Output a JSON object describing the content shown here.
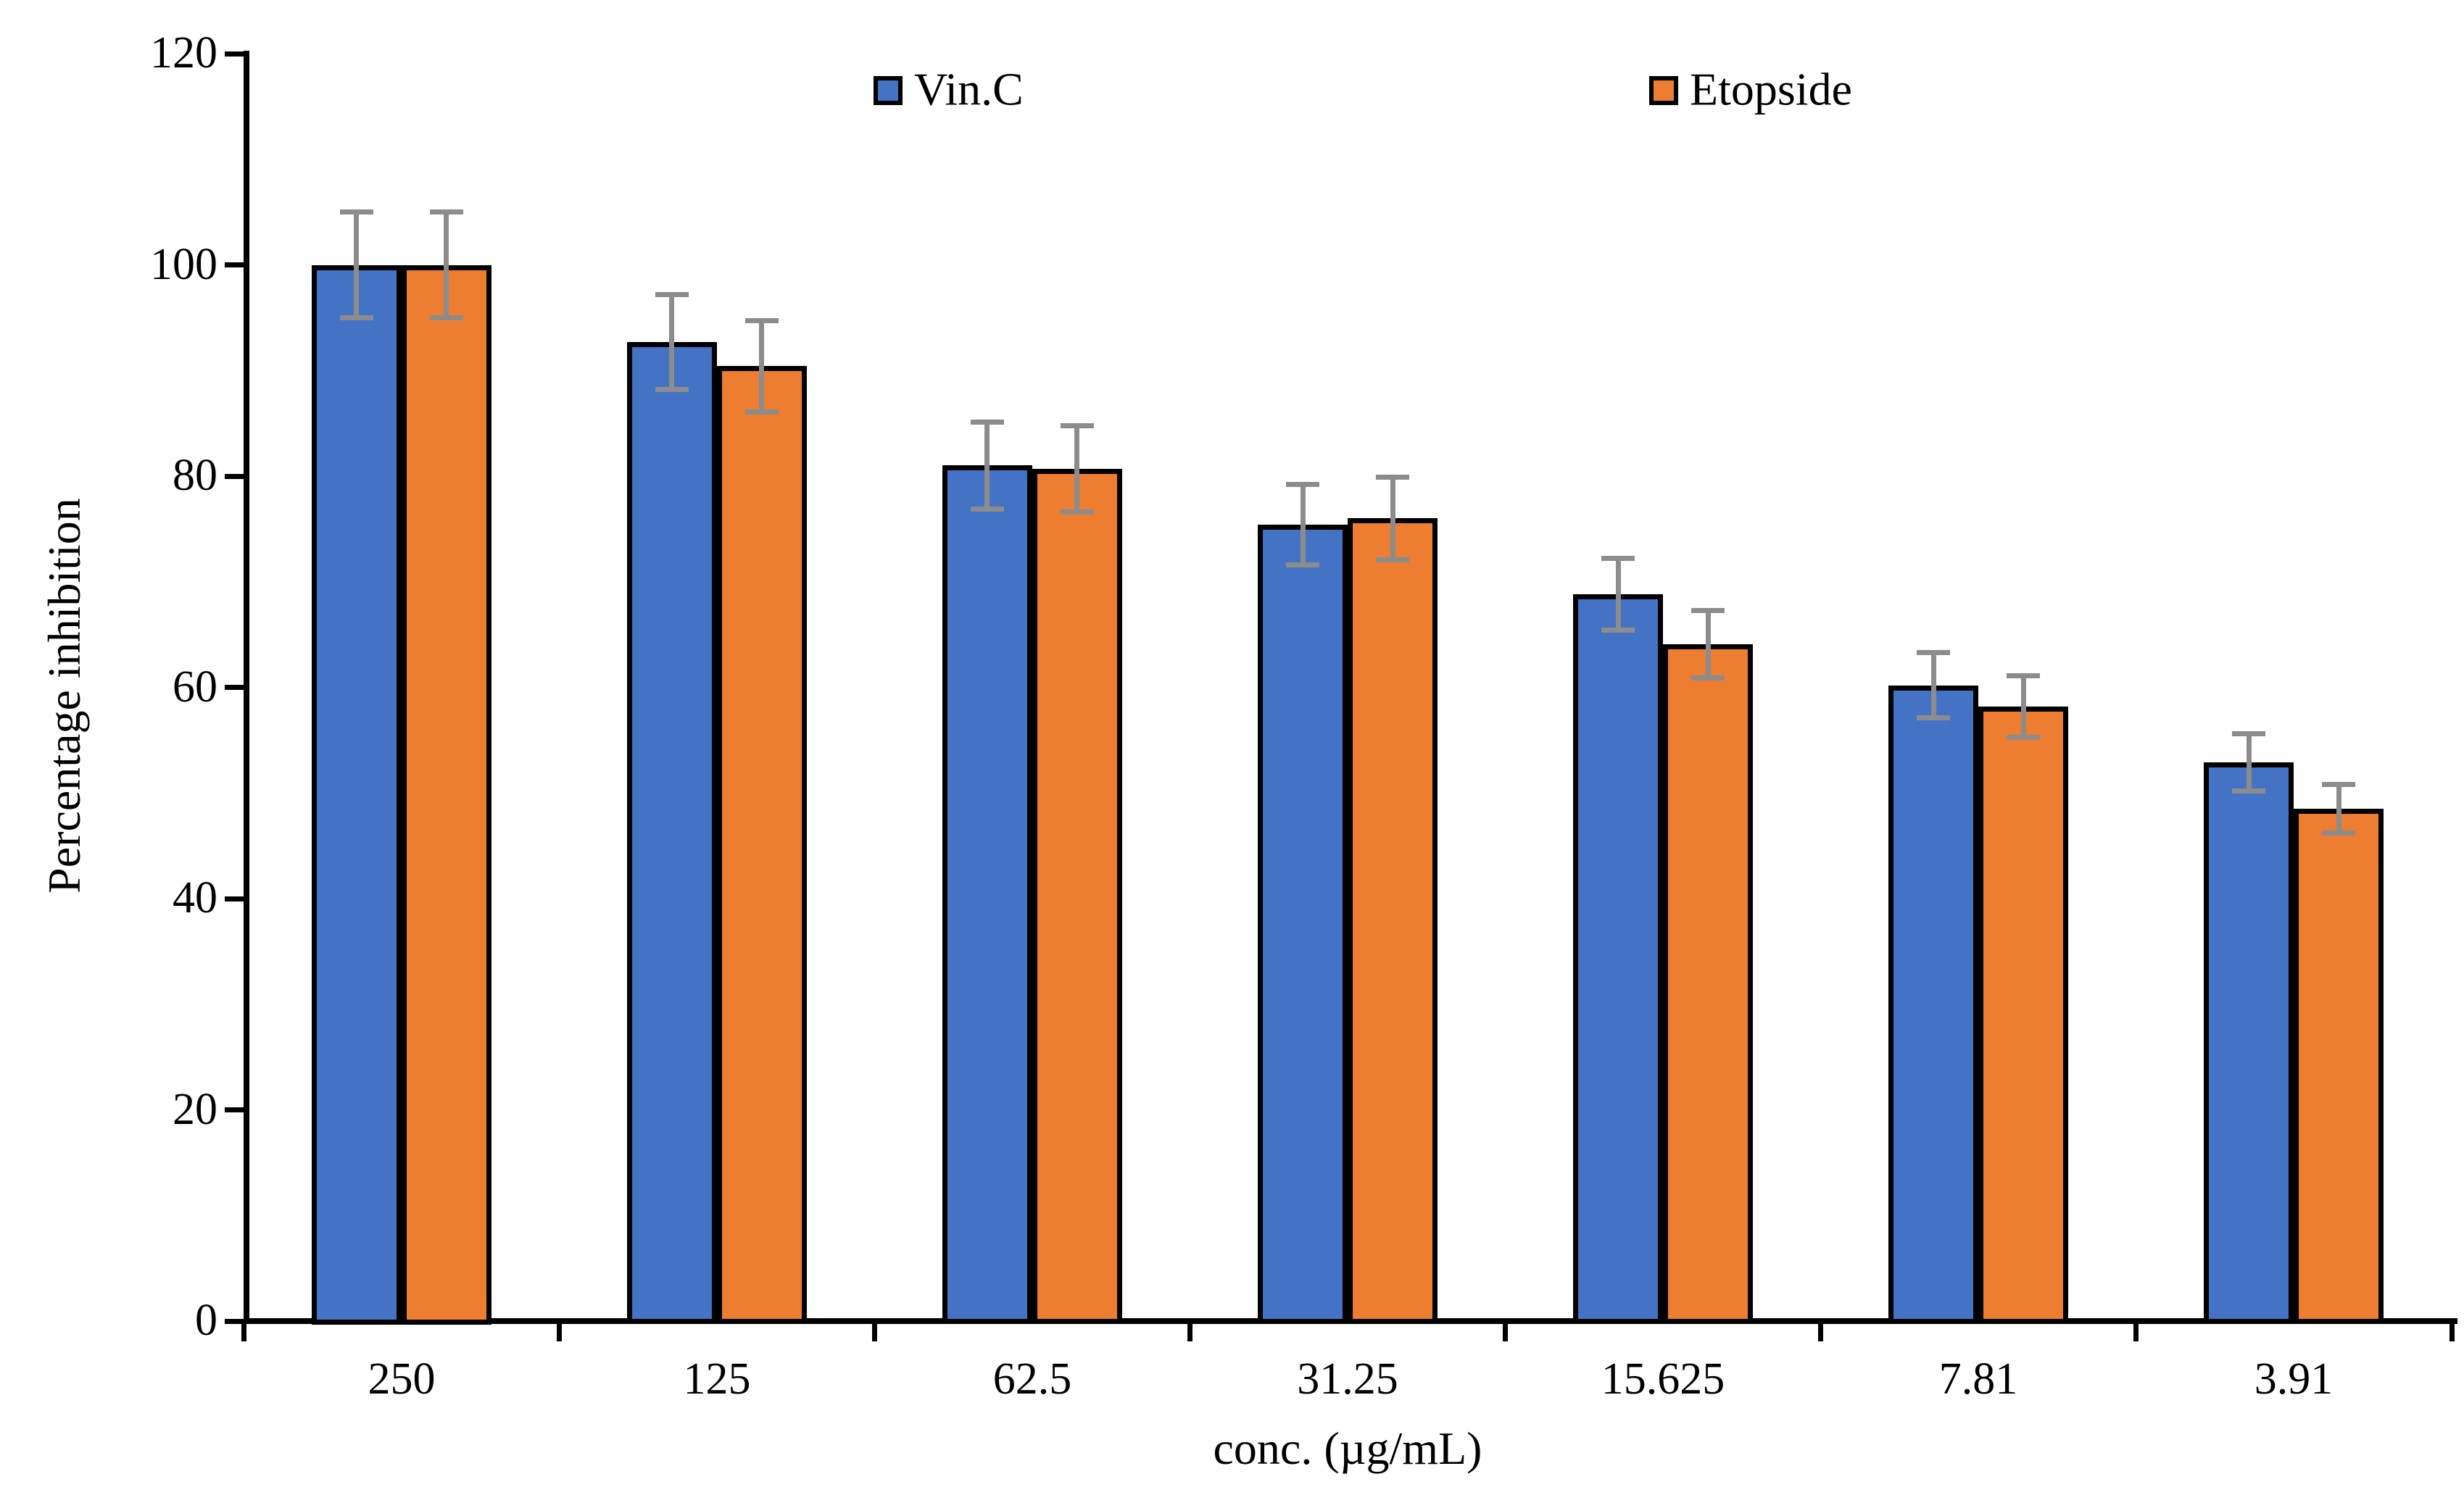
{
  "chart_data": {
    "type": "bar",
    "title": "",
    "xlabel": "conc. (µg/mL)",
    "ylabel": "Percentage inhibition",
    "categories": [
      "250",
      "125",
      "62.5",
      "31.25",
      "15.625",
      "7.81",
      "3.91"
    ],
    "series": [
      {
        "name": "Vin.C",
        "color": "#4472C4",
        "values": [
          100.0,
          92.7,
          81.0,
          75.4,
          68.8,
          60.2,
          52.9
        ],
        "errors": [
          5.0,
          4.5,
          4.1,
          3.8,
          3.4,
          3.1,
          2.7
        ]
      },
      {
        "name": "Etopside",
        "color": "#ED7D31",
        "values": [
          100.0,
          90.4,
          80.7,
          76.0,
          64.1,
          58.2,
          48.5
        ],
        "errors": [
          5.0,
          4.3,
          4.1,
          3.9,
          3.2,
          2.9,
          2.3
        ]
      }
    ],
    "ylim": [
      0,
      120
    ],
    "ytick_step": 20,
    "yticks": [
      0,
      20,
      40,
      60,
      80,
      100,
      120
    ],
    "grid": false,
    "legend_position": "top-center",
    "error_bar_color": "#8C8C8C",
    "bar_border_color": "#000000",
    "axis_color": "#000000"
  }
}
